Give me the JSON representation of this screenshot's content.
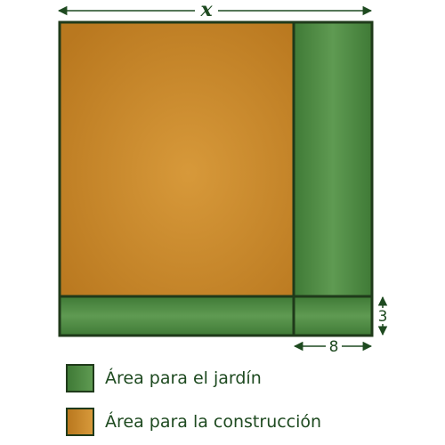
{
  "figure": {
    "top_dimension_label": "x",
    "right_dimension_label": "3",
    "bottom_dimension_label": "8"
  },
  "legend": [
    {
      "label": "Área para el jardín",
      "color": "#4f8a43"
    },
    {
      "label": "Área para la construcción",
      "color": "#c98a2e"
    }
  ],
  "colors": {
    "garden": "#4f8a43",
    "construction": "#c98a2e",
    "outline": "#1f3a1a",
    "annotation": "#1e4a20"
  }
}
